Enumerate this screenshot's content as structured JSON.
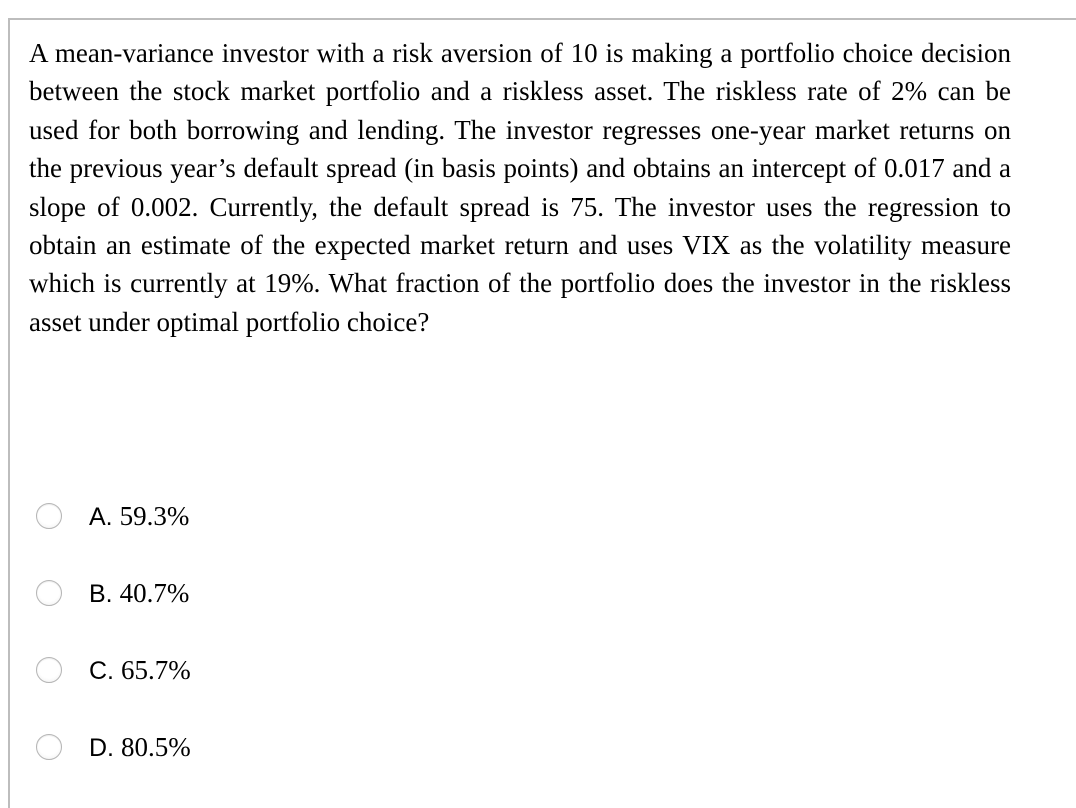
{
  "question": {
    "text": "A mean-variance investor with a risk aversion of 10 is making a portfolio choice decision between the stock market portfolio and a riskless asset. The riskless rate of 2% can be used for both borrowing and lending. The investor regresses one-year market returns on the previous year’s default spread (in basis points) and obtains an intercept of 0.017 and a slope of 0.002. Currently, the default spread is 75. The investor uses the regression to obtain an estimate of the expected market return and uses VIX as the volatility measure which is currently at 19%. What fraction of the portfolio does the investor in the riskless asset under optimal portfolio choice?"
  },
  "options": [
    {
      "letter": "A. ",
      "value": "59.3%"
    },
    {
      "letter": "B. ",
      "value": "40.7%"
    },
    {
      "letter": "C. ",
      "value": "65.7%"
    },
    {
      "letter": "D. ",
      "value": "80.5%"
    }
  ]
}
